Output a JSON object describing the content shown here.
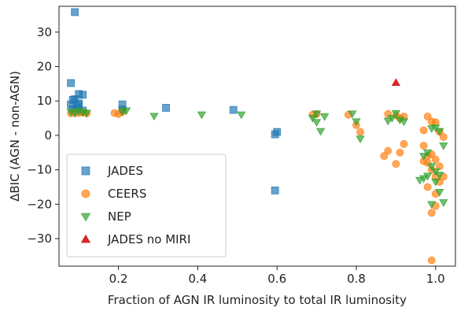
{
  "chart_data": {
    "type": "scatter",
    "xlabel": "Fraction of AGN IR luminosity to total IR luminosity",
    "ylabel": "ΔBIC (AGN - non-AGN)",
    "xlim": [
      0.05,
      1.05
    ],
    "ylim": [
      -38,
      37.5
    ],
    "xticks": [
      0.2,
      0.4,
      0.6,
      0.8,
      1.0
    ],
    "xtick_labels": [
      "0.2",
      "0.4",
      "0.6",
      "0.8",
      "1.0"
    ],
    "yticks": [
      -30,
      -20,
      -10,
      0,
      10,
      20,
      30
    ],
    "ytick_labels": [
      "−30",
      "−20",
      "−10",
      "0",
      "10",
      "20",
      "30"
    ],
    "grid": false,
    "legend_position": "lower-left",
    "series": [
      {
        "name": "JADES",
        "marker": "square",
        "color": "#1f77b4",
        "points": [
          [
            0.09,
            35.8
          ],
          [
            0.08,
            15.2
          ],
          [
            0.1,
            12.0
          ],
          [
            0.11,
            11.8
          ],
          [
            0.085,
            10.3
          ],
          [
            0.09,
            10.5
          ],
          [
            0.1,
            9.3
          ],
          [
            0.08,
            9.0
          ],
          [
            0.1,
            8.8
          ],
          [
            0.095,
            8.0
          ],
          [
            0.085,
            7.6
          ],
          [
            0.11,
            7.2
          ],
          [
            0.21,
            9.0
          ],
          [
            0.21,
            7.5
          ],
          [
            0.32,
            8.0
          ],
          [
            0.49,
            7.4
          ],
          [
            0.6,
            1.0
          ],
          [
            0.595,
            0.3
          ],
          [
            0.595,
            -16.0
          ]
        ]
      },
      {
        "name": "CEERS",
        "marker": "circle",
        "color": "#ff7f0e",
        "points": [
          [
            0.08,
            6.4
          ],
          [
            0.09,
            6.6
          ],
          [
            0.1,
            6.5
          ],
          [
            0.11,
            6.7
          ],
          [
            0.12,
            6.4
          ],
          [
            0.19,
            6.5
          ],
          [
            0.2,
            6.2
          ],
          [
            0.21,
            6.8
          ],
          [
            0.69,
            6.0
          ],
          [
            0.7,
            6.2
          ],
          [
            0.78,
            6.0
          ],
          [
            0.8,
            3.0
          ],
          [
            0.81,
            1.0
          ],
          [
            0.88,
            6.2
          ],
          [
            0.9,
            5.8
          ],
          [
            0.91,
            5.0
          ],
          [
            0.92,
            5.5
          ],
          [
            0.87,
            -6.0
          ],
          [
            0.88,
            -4.5
          ],
          [
            0.9,
            -8.3
          ],
          [
            0.91,
            -5.0
          ],
          [
            0.92,
            -2.5
          ],
          [
            0.97,
            1.5
          ],
          [
            0.98,
            5.5
          ],
          [
            0.99,
            4.0
          ],
          [
            1.0,
            3.8
          ],
          [
            1.01,
            1.0
          ],
          [
            1.02,
            -0.5
          ],
          [
            0.97,
            -3.0
          ],
          [
            0.98,
            -6.0
          ],
          [
            0.99,
            -5.5
          ],
          [
            1.0,
            -7.0
          ],
          [
            1.01,
            -9.0
          ],
          [
            1.02,
            -12.0
          ],
          [
            0.97,
            -7.5
          ],
          [
            0.98,
            -8.0
          ],
          [
            0.99,
            -10.0
          ],
          [
            1.0,
            -12.0
          ],
          [
            1.01,
            -13.5
          ],
          [
            0.98,
            -15.0
          ],
          [
            1.0,
            -17.0
          ],
          [
            0.99,
            -22.5
          ],
          [
            1.0,
            -20.5
          ],
          [
            0.99,
            -36.3
          ]
        ]
      },
      {
        "name": "NEP",
        "marker": "triangle-down",
        "color": "#2ca02c",
        "points": [
          [
            0.08,
            6.8
          ],
          [
            0.09,
            6.4
          ],
          [
            0.1,
            7.0
          ],
          [
            0.11,
            6.6
          ],
          [
            0.12,
            6.5
          ],
          [
            0.21,
            6.9
          ],
          [
            0.22,
            7.2
          ],
          [
            0.29,
            5.6
          ],
          [
            0.41,
            6.0
          ],
          [
            0.51,
            6.0
          ],
          [
            0.69,
            5.0
          ],
          [
            0.7,
            3.8
          ],
          [
            0.71,
            1.2
          ],
          [
            0.72,
            5.5
          ],
          [
            0.7,
            6.3
          ],
          [
            0.79,
            6.3
          ],
          [
            0.8,
            4.0
          ],
          [
            0.81,
            -1.0
          ],
          [
            0.88,
            4.2
          ],
          [
            0.89,
            5.0
          ],
          [
            0.9,
            6.4
          ],
          [
            0.91,
            4.5
          ],
          [
            0.92,
            4.0
          ],
          [
            0.99,
            2.0
          ],
          [
            1.0,
            2.2
          ],
          [
            1.01,
            1.2
          ],
          [
            1.02,
            -3.0
          ],
          [
            0.97,
            -6.0
          ],
          [
            0.98,
            -5.0
          ],
          [
            0.99,
            -9.0
          ],
          [
            1.0,
            -10.5
          ],
          [
            1.01,
            -11.5
          ],
          [
            0.96,
            -13.0
          ],
          [
            0.97,
            -12.5
          ],
          [
            0.98,
            -11.8
          ],
          [
            1.0,
            -13.5
          ],
          [
            1.01,
            -16.5
          ],
          [
            1.02,
            -19.5
          ],
          [
            0.99,
            -20.0
          ]
        ]
      },
      {
        "name": "JADES no MIRI",
        "marker": "triangle-up",
        "color": "#d62728",
        "points": [
          [
            0.9,
            15.3
          ]
        ]
      }
    ]
  }
}
